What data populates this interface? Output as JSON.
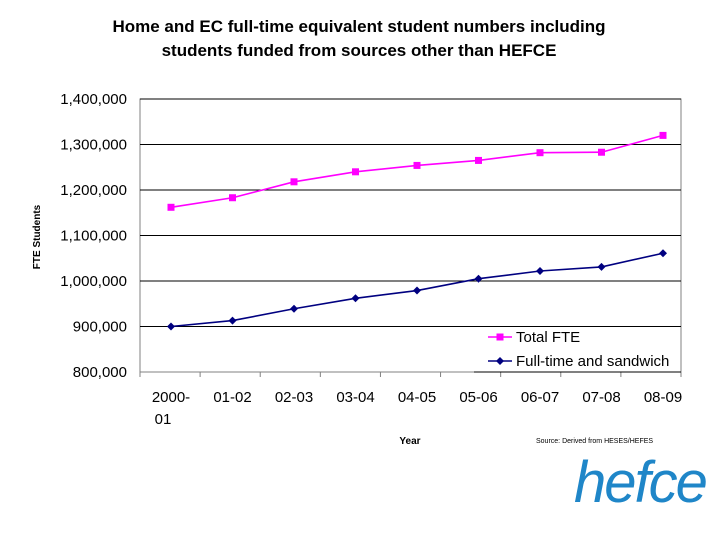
{
  "chart_data": {
    "type": "line",
    "title_lines": [
      "Home and EC full-time equivalent student numbers including",
      "students funded from sources other than HEFCE"
    ],
    "ylabel": "FTE Students",
    "xlabel": "Year",
    "source": "Source: Derived from HESES/HEFES",
    "categories": [
      [
        "2000-",
        "01"
      ],
      [
        "01-02"
      ],
      [
        "02-03"
      ],
      [
        "03-04"
      ],
      [
        "04-05"
      ],
      [
        "05-06"
      ],
      [
        "06-07"
      ],
      [
        "07-08"
      ],
      [
        "08-09"
      ]
    ],
    "ylim": [
      800000,
      1400000
    ],
    "yticks": [
      "800,000",
      "900,000",
      "1,000,000",
      "1,100,000",
      "1,200,000",
      "1,300,000",
      "1,400,000"
    ],
    "ytick_values": [
      800000,
      900000,
      1000000,
      1100000,
      1200000,
      1300000,
      1400000
    ],
    "gridlines": "horizontal",
    "legend_position": "bottom-right",
    "series": [
      {
        "name": "Total FTE",
        "color": "#ff00ff",
        "marker": "square",
        "values": [
          1162000,
          1183000,
          1218000,
          1240000,
          1254000,
          1265000,
          1282000,
          1283000,
          1320000
        ]
      },
      {
        "name": "Full-time and sandwich",
        "color": "#000080",
        "marker": "diamond",
        "values": [
          900000,
          913000,
          939000,
          962000,
          979000,
          1005000,
          1022000,
          1031000,
          1061000
        ]
      }
    ]
  },
  "logo": {
    "text": "hefce",
    "color": "#1f86c8"
  }
}
